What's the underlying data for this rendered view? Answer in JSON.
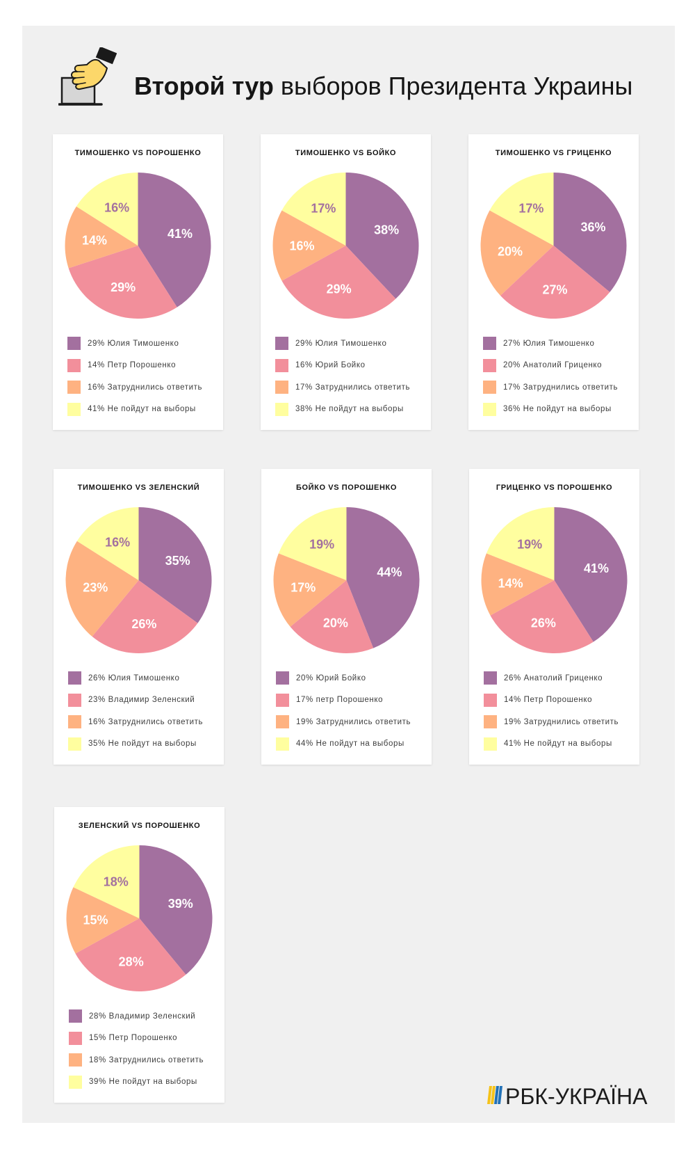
{
  "header": {
    "icon": "ballot-box-icon",
    "title_bold": "Второй тур",
    "title_rest": "выборов Президента Украины"
  },
  "colors": {
    "page_background": "#f0f0f0",
    "card_background": "#ffffff",
    "slices": [
      "#a3709f",
      "#f28f9b",
      "#feb281",
      "#fffe9f"
    ],
    "slice_labels": [
      "#ffffff",
      "#ffffff",
      "#ffffff",
      "#a3709f"
    ]
  },
  "chart_data": [
    {
      "type": "pie",
      "title": "ТИМОШЕНКО VS ПОРОШЕНКО",
      "slices": [
        {
          "label": "41%",
          "value": 41
        },
        {
          "label": "29%",
          "value": 29
        },
        {
          "label": "14%",
          "value": 14
        },
        {
          "label": "16%",
          "value": 16
        }
      ],
      "legend": [
        "29% Юлия Тимошенко",
        "14% Петр Порошенко",
        "16% Затруднились ответить",
        "41% Не пойдут на выборы"
      ]
    },
    {
      "type": "pie",
      "title": "ТИМОШЕНКО VS БОЙКО",
      "slices": [
        {
          "label": "38%",
          "value": 38
        },
        {
          "label": "29%",
          "value": 29
        },
        {
          "label": "16%",
          "value": 16
        },
        {
          "label": "17%",
          "value": 17
        }
      ],
      "legend": [
        "29% Юлия Тимошенко",
        "16% Юрий Бойко",
        "17% Затруднились ответить",
        "38% Не пойдут на выборы"
      ]
    },
    {
      "type": "pie",
      "title": "ТИМОШЕНКО VS ГРИЦЕНКО",
      "slices": [
        {
          "label": "36%",
          "value": 36
        },
        {
          "label": "27%",
          "value": 27
        },
        {
          "label": "20%",
          "value": 20
        },
        {
          "label": "17%",
          "value": 17
        }
      ],
      "legend": [
        "27% Юлия Тимошенко",
        "20% Анатолий Гриценко",
        "17% Затруднились ответить",
        "36% Не пойдут на выборы"
      ]
    },
    {
      "type": "pie",
      "title": "ТИМОШЕНКО VS ЗЕЛЕНСКИЙ",
      "slices": [
        {
          "label": "35%",
          "value": 35
        },
        {
          "label": "26%",
          "value": 26
        },
        {
          "label": "23%",
          "value": 23
        },
        {
          "label": "16%",
          "value": 16
        }
      ],
      "legend": [
        "26% Юлия Тимошенко",
        "23% Владимир Зеленский",
        "16% Затруднились ответить",
        "35% Не пойдут на выборы"
      ]
    },
    {
      "type": "pie",
      "title": "БОЙКО VS ПОРОШЕНКО",
      "slices": [
        {
          "label": "44%",
          "value": 44
        },
        {
          "label": "20%",
          "value": 20
        },
        {
          "label": "17%",
          "value": 17
        },
        {
          "label": "19%",
          "value": 19
        }
      ],
      "legend": [
        "20% Юрий Бойко",
        "17% петр Порошенко",
        "19% Затруднились ответить",
        "44% Не пойдут на выборы"
      ]
    },
    {
      "type": "pie",
      "title": "ГРИЦЕНКО VS ПОРОШЕНКО",
      "slices": [
        {
          "label": "41%",
          "value": 41
        },
        {
          "label": "26%",
          "value": 26
        },
        {
          "label": "14%",
          "value": 14
        },
        {
          "label": "19%",
          "value": 19
        }
      ],
      "legend": [
        "26% Анатолий Гриценко",
        "14% Петр Порошенко",
        "19% Затруднились ответить",
        "41% Не пойдут на выборы"
      ]
    },
    {
      "type": "pie",
      "title": "ЗЕЛЕНСКИЙ VS ПОРОШЕНКО",
      "slices": [
        {
          "label": "39%",
          "value": 39
        },
        {
          "label": "28%",
          "value": 28
        },
        {
          "label": "15%",
          "value": 15
        },
        {
          "label": "18%",
          "value": 18
        }
      ],
      "legend": [
        "28% Владимир Зеленский",
        "15% Петр Порошенко",
        "18% Затруднились ответить",
        "39% Не пойдут на выборы"
      ]
    }
  ],
  "logo": {
    "icon": "rbc-ukraina-logo-mark-icon",
    "text": "РБК-УКРАЇНА",
    "mark_colors": [
      "#f5c219",
      "#2272b8"
    ]
  }
}
